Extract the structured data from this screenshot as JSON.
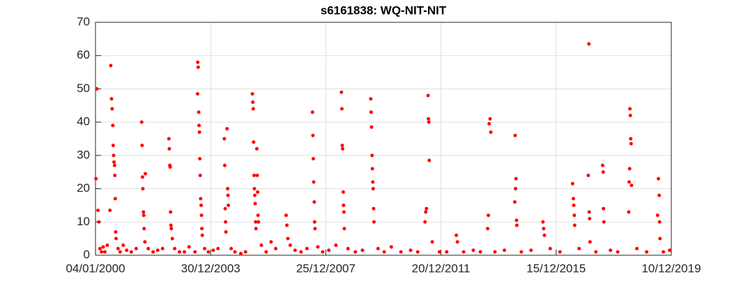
{
  "chart_data": {
    "type": "scatter",
    "title": "s6161838: WQ-NIT-NIT",
    "x": [
      "2000-01-10",
      "2000-01-20",
      "2000-02-05",
      "2000-02-15",
      "2000-03-01",
      "2000-03-20",
      "2000-04-10",
      "2000-05-01",
      "2000-06-01",
      "2000-07-05",
      "2000-07-15",
      "2000-07-25",
      "2000-08-01",
      "2000-08-10",
      "2000-08-15",
      "2000-08-20",
      "2000-08-25",
      "2000-09-01",
      "2000-09-05",
      "2000-09-10",
      "2000-09-15",
      "2000-09-20",
      "2000-10-15",
      "2000-11-10",
      "2000-12-20",
      "2001-02-01",
      "2001-04-01",
      "2001-06-01",
      "2001-08-10",
      "2001-08-15",
      "2001-08-20",
      "2001-08-25",
      "2001-09-01",
      "2001-09-05",
      "2001-09-10",
      "2001-09-20",
      "2001-09-25",
      "2001-11-01",
      "2002-01-01",
      "2002-03-01",
      "2002-05-01",
      "2002-07-20",
      "2002-07-25",
      "2002-08-01",
      "2002-08-05",
      "2002-08-10",
      "2002-08-15",
      "2002-08-20",
      "2002-09-01",
      "2002-10-01",
      "2002-12-01",
      "2003-02-01",
      "2003-04-01",
      "2003-06-15",
      "2003-07-18",
      "2003-07-20",
      "2003-07-25",
      "2003-08-01",
      "2003-08-05",
      "2003-08-10",
      "2003-08-15",
      "2003-08-20",
      "2003-08-25",
      "2003-09-01",
      "2003-09-05",
      "2003-09-10",
      "2003-09-15",
      "2003-10-15",
      "2003-12-01",
      "2004-02-01",
      "2004-04-01",
      "2004-06-20",
      "2004-06-25",
      "2004-07-01",
      "2004-07-05",
      "2004-07-10",
      "2004-07-25",
      "2004-08-01",
      "2004-08-05",
      "2004-08-10",
      "2004-09-15",
      "2004-11-01",
      "2005-01-15",
      "2005-03-15",
      "2005-06-10",
      "2005-06-15",
      "2005-06-20",
      "2005-06-25",
      "2005-07-01",
      "2005-07-05",
      "2005-07-10",
      "2005-07-15",
      "2005-07-20",
      "2005-07-25",
      "2005-08-05",
      "2005-08-10",
      "2005-08-15",
      "2005-08-20",
      "2005-08-25",
      "2005-10-01",
      "2005-12-01",
      "2006-02-01",
      "2006-04-01",
      "2006-08-10",
      "2006-08-20",
      "2006-09-01",
      "2006-10-01",
      "2006-12-01",
      "2007-02-15",
      "2007-05-01",
      "2007-07-10",
      "2007-07-15",
      "2007-07-20",
      "2007-07-25",
      "2007-08-01",
      "2007-08-05",
      "2007-08-10",
      "2007-09-15",
      "2007-11-15",
      "2008-02-01",
      "2008-05-01",
      "2008-07-10",
      "2008-07-15",
      "2008-07-20",
      "2008-07-25",
      "2008-08-01",
      "2008-08-05",
      "2008-08-10",
      "2008-08-15",
      "2008-10-01",
      "2009-01-01",
      "2009-04-01",
      "2009-07-15",
      "2009-07-20",
      "2009-07-25",
      "2009-08-01",
      "2009-08-05",
      "2009-08-10",
      "2009-08-15",
      "2009-08-20",
      "2009-08-25",
      "2009-10-15",
      "2010-01-01",
      "2010-04-01",
      "2010-08-01",
      "2010-12-01",
      "2011-03-01",
      "2011-06-01",
      "2011-06-10",
      "2011-06-20",
      "2011-07-10",
      "2011-07-15",
      "2011-07-20",
      "2011-07-25",
      "2011-09-01",
      "2011-12-01",
      "2012-03-01",
      "2012-07-01",
      "2012-07-15",
      "2012-10-01",
      "2013-02-01",
      "2013-05-01",
      "2013-08-01",
      "2013-08-10",
      "2013-08-20",
      "2013-09-01",
      "2013-09-10",
      "2013-11-01",
      "2014-03-01",
      "2014-07-10",
      "2014-07-15",
      "2014-07-20",
      "2014-07-25",
      "2014-08-01",
      "2014-08-05",
      "2014-10-01",
      "2015-02-01",
      "2015-07-01",
      "2015-07-10",
      "2015-07-20",
      "2015-10-01",
      "2016-02-01",
      "2016-07-10",
      "2016-07-20",
      "2016-07-25",
      "2016-08-01",
      "2016-08-05",
      "2016-10-01",
      "2017-01-25",
      "2017-02-01",
      "2017-02-05",
      "2017-02-10",
      "2017-02-15",
      "2017-05-01",
      "2017-07-25",
      "2017-08-01",
      "2017-08-05",
      "2017-08-10",
      "2017-11-01",
      "2018-02-01",
      "2018-06-20",
      "2018-06-25",
      "2018-07-01",
      "2018-07-05",
      "2018-07-10",
      "2018-07-15",
      "2018-07-20",
      "2018-07-25",
      "2018-10-01",
      "2019-02-01",
      "2019-06-20",
      "2019-07-01",
      "2019-07-10",
      "2019-07-15",
      "2019-07-20",
      "2019-09-01",
      "2019-11-20"
    ],
    "series": [
      {
        "color": "#ff0000",
        "values": [
          23,
          50,
          13.5,
          10,
          2,
          1,
          2.5,
          1,
          3,
          13.5,
          57,
          47,
          44,
          39,
          33,
          30,
          28,
          27,
          24,
          17,
          7,
          5,
          2,
          1,
          3,
          1.5,
          1,
          2,
          40,
          33,
          23.5,
          20,
          13,
          12,
          8,
          4,
          24.5,
          2,
          1,
          1.5,
          2,
          35,
          32,
          27,
          26.5,
          13,
          9,
          8,
          5,
          2,
          1,
          1,
          2.5,
          1,
          48.5,
          58,
          56.5,
          43,
          39,
          37,
          29,
          24,
          17,
          15,
          12,
          8,
          6,
          2,
          1,
          1.5,
          2,
          35,
          27,
          14,
          10,
          7,
          38,
          20,
          18,
          15,
          2,
          1,
          0.5,
          1,
          48.5,
          46,
          44,
          34,
          24,
          20,
          18,
          15.5,
          10,
          8,
          32,
          24,
          19,
          12,
          10,
          3,
          1,
          4,
          2,
          12,
          9,
          5,
          3,
          1.5,
          1,
          2,
          43,
          36,
          29,
          22,
          16,
          10,
          8,
          2.5,
          1,
          1.5,
          3,
          49,
          44,
          33,
          32,
          19,
          15,
          13,
          8,
          2,
          1,
          1.5,
          47,
          43,
          38.5,
          30,
          26,
          22,
          20,
          14,
          10,
          2,
          1,
          2.5,
          1,
          1.5,
          1,
          10,
          13,
          14,
          48,
          41,
          40,
          28.5,
          4,
          1,
          1,
          6,
          4,
          1,
          1.5,
          1,
          8,
          12,
          39.5,
          41,
          37,
          1,
          1.5,
          16,
          36,
          20,
          23,
          10.5,
          9,
          1,
          1.5,
          10,
          8,
          6,
          2,
          1,
          21.5,
          17,
          15,
          12,
          9,
          2,
          24,
          63.5,
          13,
          11,
          4,
          1,
          27,
          25,
          14,
          10,
          1.5,
          1,
          13,
          22,
          26,
          44,
          42,
          35,
          33.5,
          21,
          2,
          1,
          12,
          23,
          18,
          10,
          5,
          1,
          1.5
        ]
      }
    ],
    "xlim": [
      "2000-01-04",
      "2019-12-10"
    ],
    "xticks": [
      {
        "value": "2000-01-04",
        "label": "04/01/2000"
      },
      {
        "value": "2003-12-30",
        "label": "30/12/2003"
      },
      {
        "value": "2007-12-25",
        "label": "25/12/2007"
      },
      {
        "value": "2011-12-20",
        "label": "20/12/2011"
      },
      {
        "value": "2015-12-15",
        "label": "15/12/2015"
      },
      {
        "value": "2019-12-10",
        "label": "10/12/2019"
      }
    ],
    "ylim": [
      0,
      70
    ],
    "yticks": [
      0,
      10,
      20,
      30,
      40,
      50,
      60,
      70
    ],
    "grid": true
  }
}
